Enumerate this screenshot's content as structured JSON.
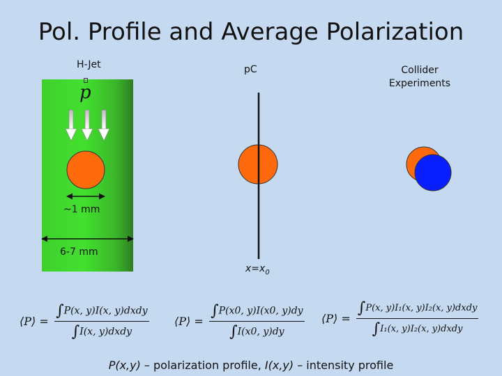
{
  "title": "Pol. Profile and Average Polarization",
  "panels": {
    "hjet": {
      "label": "H-Jet",
      "beam_symbol": "p",
      "beam_size": "~1 mm",
      "jet_width": "6-7 mm"
    },
    "pc": {
      "label": "pC",
      "target_position": "x=x",
      "target_position_sub": "0"
    },
    "collider": {
      "label_line1": "Collider",
      "label_line2": "Experiments"
    }
  },
  "formulas": {
    "hjet": {
      "lhs": "⟨P⟩ =",
      "numerator": "P(x, y)I(x, y)dxdy",
      "denominator": "I(x, y)dxdy"
    },
    "pc": {
      "lhs": "⟨P⟩ =",
      "numerator": "P(x0, y)I(x0, y)dy",
      "denominator": "I(x0, y)dy"
    },
    "collider": {
      "lhs": "⟨P⟩ =",
      "numerator": "P(x, y)I₁(x, y)I₂(x, y)dxdy",
      "denominator": "I₁(x, y)I₂(x, y)dxdy"
    }
  },
  "caption": {
    "p_sym": "P(x,y)",
    "p_text": " – polarization profile, ",
    "i_sym": "I(x,y)",
    "i_text": " – intensity profile"
  },
  "colors": {
    "background": "#c5d9f1",
    "beam_orange": "#ff6a0d",
    "beam_blue": "#0a1fff",
    "jet_green": "#43e02f"
  }
}
